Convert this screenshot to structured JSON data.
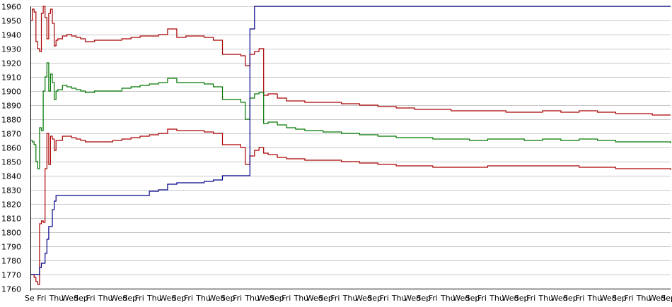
{
  "chart_data": {
    "type": "line",
    "title": "",
    "xlabel": "",
    "ylabel": "",
    "ylim": [
      1760,
      1960
    ],
    "y_ticks": [
      1760,
      1770,
      1780,
      1790,
      1800,
      1810,
      1820,
      1830,
      1840,
      1850,
      1860,
      1870,
      1880,
      1890,
      1900,
      1910,
      1920,
      1930,
      1940,
      1950,
      1960
    ],
    "grid": true,
    "legend": "none",
    "colors": {
      "upper_band": "#aa0000",
      "middle_band": "#007700",
      "lower_band": "#aa0000",
      "price": "#000088",
      "grid": "#c8c8c8",
      "axis": "#000000"
    },
    "x_tick_labels": [
      "Se",
      "Fri",
      "Thu",
      "Wed",
      "Sep",
      "Fri",
      "Thu",
      "Wed",
      "Sep",
      "Fri",
      "Thu",
      "Wed",
      "Sep",
      "Fri",
      "Thu",
      "Wed",
      "Sep",
      "Fri",
      "Thu",
      "Wed",
      "Sep",
      "Fri",
      "Thu",
      "Wed",
      "Sep",
      "Fri",
      "Thu",
      "Wed",
      "Sep",
      "Fri",
      "Thu",
      "Wed",
      "Sep",
      "Fri",
      "Thu",
      "Wed",
      "Sep",
      "Fri",
      "Thu",
      "Wed",
      "Sep",
      "Fri",
      "Thu",
      "Wed",
      "Sep",
      "Fri",
      "Thu",
      "Wed",
      "Sep",
      "Fri",
      "Thu",
      "Wed",
      "Sep"
    ],
    "x": [
      0,
      2,
      4,
      6,
      8,
      10,
      12,
      14,
      16,
      18,
      20,
      22,
      24,
      26,
      28,
      30,
      35,
      40,
      45,
      50,
      55,
      60,
      70,
      80,
      90,
      100,
      110,
      120,
      130,
      140,
      150,
      160,
      170,
      180,
      190,
      200,
      210,
      220,
      230,
      235,
      240,
      245,
      250,
      255,
      260,
      270,
      280,
      290,
      300,
      320,
      340,
      360,
      380,
      400,
      420,
      440,
      460,
      480,
      500,
      520,
      540,
      560,
      580,
      600,
      620,
      640,
      660,
      680,
      700
    ],
    "series": [
      {
        "key": "upper_band",
        "values": [
          1950,
          1958,
          1956,
          1935,
          1930,
          1928,
          1955,
          1960,
          1952,
          1937,
          1955,
          1958,
          1948,
          1932,
          1936,
          1937,
          1939,
          1940,
          1939,
          1938,
          1937,
          1935,
          1936,
          1936,
          1936,
          1937,
          1938,
          1939,
          1939,
          1940,
          1944,
          1938,
          1939,
          1939,
          1938,
          1936,
          1926,
          1926,
          1925,
          1918,
          1926,
          1928,
          1930,
          1897,
          1898,
          1895,
          1893,
          1893,
          1892,
          1892,
          1891,
          1890,
          1889,
          1888,
          1887,
          1887,
          1886,
          1886,
          1886,
          1885,
          1885,
          1886,
          1885,
          1886,
          1885,
          1884,
          1884,
          1883,
          1883
        ]
      },
      {
        "key": "middle_band",
        "values": [
          1865,
          1864,
          1862,
          1850,
          1845,
          1874,
          1872,
          1900,
          1910,
          1920,
          1900,
          1912,
          1906,
          1894,
          1900,
          1901,
          1904,
          1903,
          1902,
          1901,
          1900,
          1899,
          1900,
          1900,
          1900,
          1902,
          1903,
          1904,
          1905,
          1906,
          1909,
          1906,
          1906,
          1906,
          1905,
          1903,
          1894,
          1894,
          1892,
          1880,
          1895,
          1898,
          1899,
          1877,
          1878,
          1876,
          1874,
          1873,
          1872,
          1871,
          1870,
          1869,
          1868,
          1867,
          1867,
          1866,
          1866,
          1865,
          1866,
          1866,
          1865,
          1866,
          1865,
          1866,
          1865,
          1864,
          1864,
          1864,
          1863
        ]
      },
      {
        "key": "lower_band",
        "values": [
          1770,
          1770,
          1768,
          1765,
          1763,
          1806,
          1808,
          1807,
          1845,
          1870,
          1848,
          1868,
          1866,
          1858,
          1865,
          1865,
          1868,
          1868,
          1867,
          1866,
          1865,
          1864,
          1864,
          1864,
          1865,
          1866,
          1867,
          1868,
          1869,
          1870,
          1873,
          1872,
          1872,
          1872,
          1871,
          1870,
          1862,
          1862,
          1860,
          1848,
          1854,
          1858,
          1860,
          1856,
          1855,
          1853,
          1852,
          1852,
          1851,
          1851,
          1850,
          1849,
          1848,
          1847,
          1847,
          1846,
          1846,
          1846,
          1847,
          1847,
          1847,
          1847,
          1847,
          1846,
          1846,
          1845,
          1845,
          1845,
          1844
        ]
      },
      {
        "key": "price",
        "values": [
          1770,
          1770,
          1770,
          1770,
          1770,
          1775,
          1778,
          1778,
          1785,
          1795,
          1804,
          1804,
          1816,
          1822,
          1826,
          1826,
          1826,
          1826,
          1826,
          1826,
          1826,
          1826,
          1826,
          1826,
          1826,
          1826,
          1826,
          1826,
          1829,
          1830,
          1834,
          1835,
          1835,
          1835,
          1836,
          1837,
          1840,
          1840,
          1840,
          1840,
          1944,
          1960,
          1960,
          1960,
          1960,
          1960,
          1960,
          1960,
          1960,
          1960,
          1960,
          1960,
          1960,
          1960,
          1960,
          1960,
          1960,
          1960,
          1960,
          1960,
          1960,
          1960,
          1960,
          1960,
          1960,
          1960,
          1960,
          1960,
          1960
        ]
      }
    ]
  }
}
